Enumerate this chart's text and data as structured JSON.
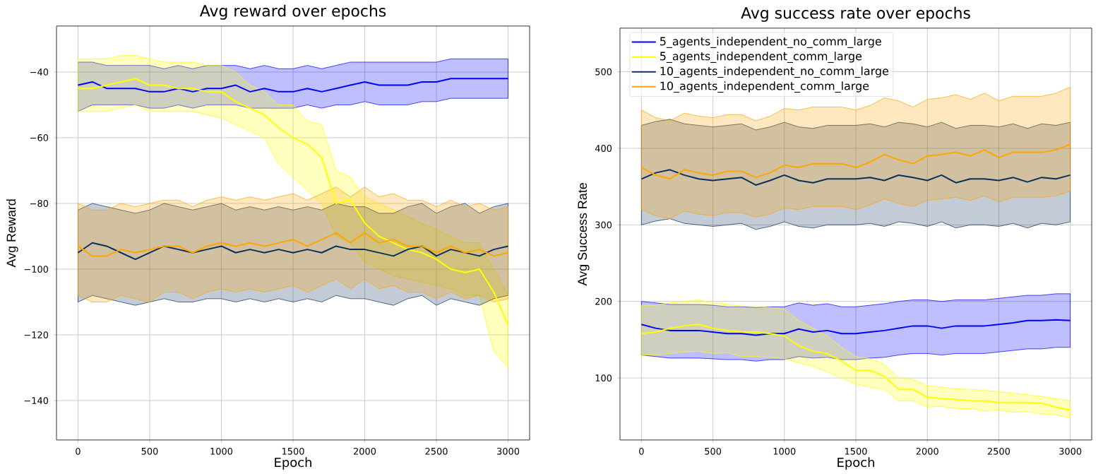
{
  "chart_data": [
    {
      "type": "line",
      "title": "Avg reward over epochs",
      "xlabel": "Epoch",
      "ylabel": "Avg Reward",
      "xlim": [
        -150,
        3150
      ],
      "ylim": [
        -152,
        -26
      ],
      "xticks": [
        0,
        500,
        1000,
        1500,
        2000,
        2500,
        3000
      ],
      "yticks": [
        {
          "value": -140,
          "label": "−140"
        },
        {
          "value": -120,
          "label": "−120"
        },
        {
          "value": -100,
          "label": "−100"
        },
        {
          "value": -80,
          "label": "−80"
        },
        {
          "value": -60,
          "label": "−60"
        },
        {
          "value": -40,
          "label": "−40"
        }
      ],
      "grid": true,
      "legend": false,
      "x": [
        0,
        100,
        200,
        300,
        400,
        500,
        600,
        700,
        800,
        900,
        1000,
        1100,
        1200,
        1300,
        1400,
        1500,
        1600,
        1700,
        1800,
        1900,
        2000,
        2100,
        2200,
        2300,
        2400,
        2500,
        2600,
        2700,
        2800,
        2900,
        3000
      ],
      "series": [
        {
          "color": "#0000ff",
          "values": [
            -44,
            -43,
            -45,
            -45,
            -45,
            -46,
            -46,
            -45,
            -46,
            -45,
            -45,
            -44,
            -46,
            -45,
            -46,
            -46,
            -45,
            -46,
            -45,
            -44,
            -43,
            -44,
            -44,
            -44,
            -43,
            -43,
            -42,
            -42,
            -42,
            -42,
            -42
          ],
          "lower": [
            -52,
            -50,
            -50,
            -50,
            -50,
            -51,
            -51,
            -50,
            -51,
            -50,
            -50,
            -50,
            -51,
            -51,
            -51,
            -51,
            -50,
            -51,
            -50,
            -50,
            -49,
            -50,
            -50,
            -50,
            -49,
            -49,
            -48,
            -48,
            -48,
            -48,
            -48
          ],
          "upper": [
            -37,
            -37,
            -38,
            -38,
            -38,
            -38,
            -39,
            -38,
            -39,
            -38,
            -38,
            -38,
            -39,
            -38,
            -39,
            -39,
            -38,
            -39,
            -38,
            -37,
            -37,
            -37,
            -37,
            -37,
            -37,
            -37,
            -36,
            -36,
            -36,
            -36,
            -36
          ]
        },
        {
          "color": "#ffff00",
          "values": [
            -45,
            -45,
            -44,
            -43,
            -42,
            -44,
            -44,
            -45,
            -45,
            -46,
            -46,
            -49,
            -51,
            -53,
            -57,
            -60,
            -62,
            -66,
            -80,
            -79,
            -86,
            -90,
            -92,
            -94,
            -95,
            -97,
            -100,
            -101,
            -100,
            -107,
            -117
          ],
          "lower": [
            -52,
            -52,
            -52,
            -51,
            -50,
            -52,
            -52,
            -52,
            -52,
            -53,
            -54,
            -56,
            -58,
            -60,
            -68,
            -72,
            -76,
            -80,
            -90,
            -92,
            -98,
            -100,
            -102,
            -103,
            -104,
            -105,
            -106,
            -108,
            -108,
            -125,
            -130
          ],
          "upper": [
            -36,
            -36,
            -36,
            -35,
            -35,
            -36,
            -37,
            -37,
            -37,
            -38,
            -38,
            -40,
            -44,
            -46,
            -50,
            -50,
            -55,
            -56,
            -70,
            -72,
            -78,
            -80,
            -82,
            -84,
            -86,
            -88,
            -90,
            -92,
            -92,
            -100,
            -108
          ]
        },
        {
          "color": "#0b2f5a",
          "values": [
            -95,
            -92,
            -93,
            -95,
            -97,
            -95,
            -93,
            -94,
            -95,
            -94,
            -93,
            -95,
            -94,
            -95,
            -94,
            -95,
            -94,
            -95,
            -93,
            -94,
            -94,
            -95,
            -96,
            -94,
            -93,
            -96,
            -94,
            -95,
            -96,
            -94,
            -93
          ],
          "lower": [
            -110,
            -108,
            -109,
            -110,
            -111,
            -110,
            -109,
            -110,
            -110,
            -109,
            -109,
            -110,
            -109,
            -110,
            -109,
            -110,
            -109,
            -110,
            -108,
            -109,
            -109,
            -110,
            -111,
            -109,
            -108,
            -111,
            -109,
            -110,
            -111,
            -109,
            -108
          ],
          "upper": [
            -82,
            -80,
            -81,
            -82,
            -83,
            -82,
            -80,
            -81,
            -82,
            -81,
            -80,
            -82,
            -81,
            -82,
            -81,
            -82,
            -81,
            -82,
            -80,
            -81,
            -81,
            -83,
            -83,
            -81,
            -80,
            -83,
            -81,
            -80,
            -83,
            -81,
            -80
          ]
        },
        {
          "color": "#ffa500",
          "values": [
            -93,
            -96,
            -96,
            -94,
            -95,
            -94,
            -93,
            -93,
            -95,
            -93,
            -92,
            -93,
            -92,
            -93,
            -92,
            -91,
            -93,
            -91,
            -89,
            -92,
            -89,
            -92,
            -91,
            -93,
            -93,
            -95,
            -93,
            -95,
            -94,
            -96,
            -95
          ],
          "lower": [
            -108,
            -110,
            -110,
            -108,
            -109,
            -110,
            -107,
            -107,
            -109,
            -107,
            -106,
            -107,
            -106,
            -107,
            -106,
            -105,
            -107,
            -105,
            -103,
            -106,
            -103,
            -106,
            -105,
            -107,
            -107,
            -109,
            -107,
            -109,
            -108,
            -110,
            -109
          ],
          "upper": [
            -80,
            -82,
            -82,
            -80,
            -81,
            -80,
            -79,
            -79,
            -81,
            -79,
            -78,
            -79,
            -78,
            -79,
            -78,
            -77,
            -79,
            -77,
            -75,
            -78,
            -75,
            -78,
            -77,
            -79,
            -79,
            -81,
            -79,
            -81,
            -80,
            -82,
            -81
          ]
        }
      ]
    },
    {
      "type": "line",
      "title": "Avg success rate over epochs",
      "xlabel": "Epoch",
      "ylabel": "Avg Success Rate",
      "xlim": [
        -150,
        3150
      ],
      "ylim": [
        19,
        557
      ],
      "xticks": [
        0,
        500,
        1000,
        1500,
        2000,
        2500,
        3000
      ],
      "yticks": [
        100,
        200,
        300,
        400,
        500
      ],
      "grid": true,
      "legend": "top left",
      "x": [
        0,
        100,
        200,
        300,
        400,
        500,
        600,
        700,
        800,
        900,
        1000,
        1100,
        1200,
        1300,
        1400,
        1500,
        1600,
        1700,
        1800,
        1900,
        2000,
        2100,
        2200,
        2300,
        2400,
        2500,
        2600,
        2700,
        2800,
        2900,
        3000
      ],
      "series": [
        {
          "name": "5_agents_independent_no_comm_large",
          "color": "#0000ff",
          "values": [
            170,
            165,
            162,
            162,
            162,
            160,
            158,
            158,
            156,
            158,
            158,
            164,
            160,
            162,
            158,
            158,
            160,
            162,
            165,
            168,
            168,
            165,
            168,
            168,
            168,
            170,
            172,
            175,
            175,
            176,
            175
          ],
          "lower": [
            130,
            128,
            126,
            126,
            126,
            125,
            124,
            124,
            122,
            124,
            124,
            128,
            126,
            127,
            124,
            124,
            126,
            127,
            130,
            132,
            132,
            130,
            132,
            132,
            132,
            134,
            136,
            138,
            138,
            140,
            140
          ],
          "upper": [
            200,
            198,
            196,
            196,
            196,
            195,
            193,
            193,
            192,
            193,
            193,
            198,
            195,
            197,
            193,
            193,
            195,
            197,
            200,
            202,
            202,
            200,
            202,
            202,
            202,
            204,
            206,
            208,
            208,
            210,
            210
          ]
        },
        {
          "name": "5_agents_independent_comm_large",
          "color": "#ffff00",
          "values": [
            158,
            160,
            165,
            168,
            170,
            165,
            162,
            160,
            160,
            158,
            155,
            142,
            135,
            132,
            122,
            110,
            110,
            102,
            85,
            85,
            75,
            73,
            72,
            70,
            70,
            68,
            68,
            68,
            67,
            62,
            58
          ],
          "lower": [
            130,
            130,
            132,
            134,
            135,
            132,
            133,
            128,
            128,
            127,
            125,
            120,
            115,
            108,
            100,
            92,
            88,
            85,
            70,
            70,
            62,
            63,
            60,
            60,
            57,
            58,
            55,
            56,
            53,
            52,
            48
          ],
          "upper": [
            195,
            195,
            198,
            200,
            202,
            198,
            196,
            194,
            194,
            192,
            190,
            175,
            165,
            155,
            140,
            128,
            125,
            118,
            100,
            98,
            90,
            88,
            86,
            85,
            84,
            82,
            80,
            78,
            76,
            73,
            70
          ]
        },
        {
          "name": "10_agents_independent_no_comm_large",
          "color": "#0b2f5a",
          "values": [
            360,
            368,
            372,
            365,
            360,
            358,
            360,
            362,
            352,
            358,
            365,
            358,
            355,
            360,
            360,
            360,
            362,
            358,
            365,
            362,
            358,
            365,
            355,
            360,
            360,
            358,
            362,
            356,
            362,
            360,
            365
          ],
          "lower": [
            300,
            305,
            308,
            302,
            300,
            298,
            300,
            302,
            294,
            298,
            304,
            298,
            296,
            300,
            300,
            300,
            302,
            298,
            304,
            302,
            298,
            304,
            296,
            300,
            300,
            298,
            302,
            296,
            302,
            300,
            304
          ],
          "upper": [
            430,
            435,
            438,
            432,
            430,
            428,
            430,
            432,
            424,
            428,
            434,
            428,
            426,
            430,
            430,
            430,
            432,
            428,
            434,
            432,
            428,
            434,
            426,
            430,
            430,
            428,
            432,
            426,
            432,
            430,
            434
          ]
        },
        {
          "name": "10_agents_independent_comm_large",
          "color": "#ffa500",
          "values": [
            375,
            365,
            360,
            372,
            368,
            365,
            370,
            370,
            362,
            368,
            378,
            375,
            380,
            380,
            380,
            375,
            382,
            392,
            385,
            380,
            390,
            392,
            395,
            390,
            398,
            388,
            395,
            395,
            395,
            398,
            405
          ],
          "lower": [
            320,
            312,
            308,
            318,
            314,
            312,
            316,
            316,
            310,
            314,
            322,
            320,
            324,
            324,
            324,
            320,
            326,
            334,
            328,
            324,
            332,
            334,
            336,
            332,
            338,
            330,
            336,
            336,
            336,
            338,
            344
          ],
          "upper": [
            450,
            440,
            436,
            446,
            442,
            440,
            444,
            444,
            436,
            442,
            452,
            450,
            454,
            454,
            454,
            450,
            456,
            466,
            462,
            454,
            464,
            466,
            470,
            464,
            472,
            462,
            468,
            468,
            468,
            472,
            480
          ]
        }
      ]
    }
  ]
}
